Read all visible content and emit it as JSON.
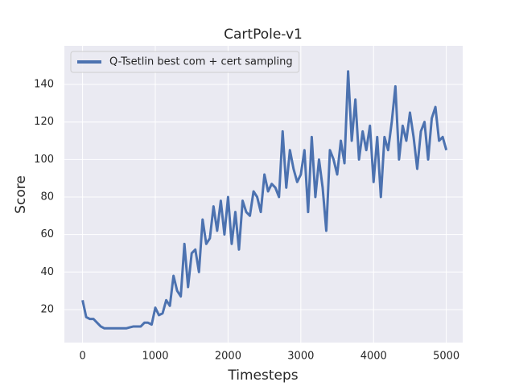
{
  "chart_data": {
    "type": "line",
    "title": "CartPole-v1",
    "x_label": "Timesteps",
    "y_label": "Score",
    "x": [
      0,
      50,
      100,
      150,
      200,
      250,
      300,
      350,
      400,
      450,
      500,
      550,
      600,
      650,
      700,
      750,
      800,
      850,
      900,
      950,
      1000,
      1050,
      1100,
      1150,
      1200,
      1250,
      1300,
      1350,
      1400,
      1450,
      1500,
      1550,
      1600,
      1650,
      1700,
      1750,
      1800,
      1850,
      1900,
      1950,
      2000,
      2050,
      2100,
      2150,
      2200,
      2250,
      2300,
      2350,
      2400,
      2450,
      2500,
      2550,
      2600,
      2650,
      2700,
      2750,
      2800,
      2850,
      2900,
      2950,
      3000,
      3050,
      3100,
      3150,
      3200,
      3250,
      3300,
      3350,
      3400,
      3450,
      3500,
      3550,
      3600,
      3650,
      3700,
      3750,
      3800,
      3850,
      3900,
      3950,
      4000,
      4050,
      4100,
      4150,
      4200,
      4250,
      4300,
      4350,
      4400,
      4450,
      4500,
      4550,
      4600,
      4650,
      4700,
      4750,
      4800,
      4850,
      4900,
      4950,
      5000
    ],
    "series": [
      {
        "name": "Q-Tsetlin best com + cert sampling",
        "color": "#4c72b0",
        "values": [
          25,
          16,
          15,
          15,
          13,
          11,
          10,
          10,
          10,
          10,
          10,
          10,
          10,
          10.5,
          11,
          11,
          11,
          13,
          13,
          12,
          21,
          17,
          18,
          25,
          22,
          38,
          30,
          27,
          55,
          32,
          50,
          52,
          40,
          68,
          55,
          58,
          75,
          62,
          78,
          60,
          80,
          55,
          72,
          52,
          78,
          72,
          70,
          83,
          80,
          72,
          92,
          83,
          87,
          85,
          80,
          115,
          85,
          105,
          95,
          88,
          92,
          105,
          72,
          112,
          80,
          100,
          85,
          62,
          105,
          100,
          92,
          110,
          98,
          147,
          110,
          132,
          100,
          115,
          105,
          118,
          88,
          112,
          80,
          112,
          105,
          120,
          139,
          100,
          118,
          110,
          125,
          112,
          95,
          115,
          120,
          100,
          122,
          128,
          110,
          112,
          105
        ]
      }
    ],
    "xlim": [
      -250,
      5225
    ],
    "ylim": [
      2.4,
      160.6
    ],
    "xticks": [
      0,
      1000,
      2000,
      3000,
      4000,
      5000
    ],
    "yticks": [
      20,
      40,
      60,
      80,
      100,
      120,
      140
    ],
    "grid": true,
    "legend": "upper left"
  }
}
